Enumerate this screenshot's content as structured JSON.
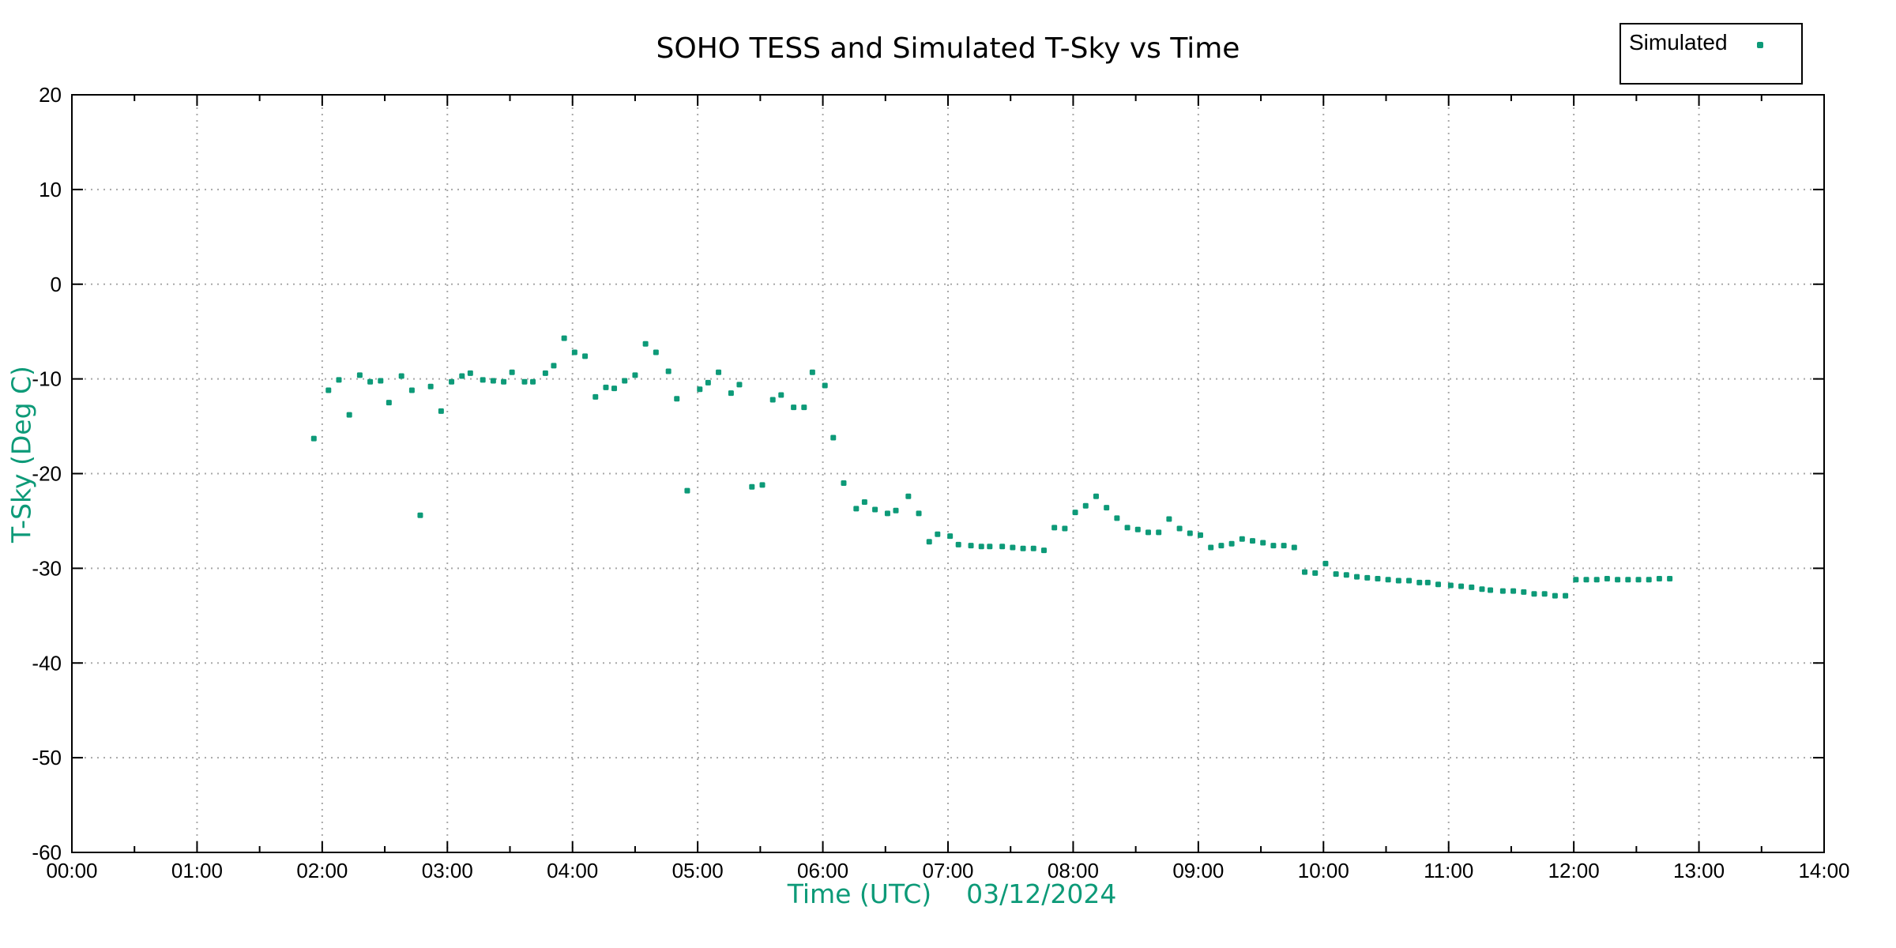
{
  "colors": {
    "accent_green": "#0d9a78",
    "grid": "#a8a8a8",
    "axis": "#000000",
    "background": "#ffffff"
  },
  "title": "SOHO TESS and Simulated T-Sky vs Time",
  "legend": {
    "label": "Simulated",
    "position": "top-right",
    "marker": "dot"
  },
  "axes": {
    "x": {
      "label": "Time (UTC)",
      "date": "03/12/2024",
      "tick_labels": [
        "00:00",
        "01:00",
        "02:00",
        "03:00",
        "04:00",
        "05:00",
        "06:00",
        "07:00",
        "08:00",
        "09:00",
        "10:00",
        "11:00",
        "12:00",
        "13:00",
        "14:00"
      ],
      "range_hours": [
        0,
        14
      ],
      "minor_tick_interval_minutes": 30
    },
    "y": {
      "label": "T-Sky (Deg C)",
      "tick_labels": [
        20,
        10,
        0,
        -10,
        -20,
        -30,
        -40,
        -50,
        -60
      ],
      "range": [
        -60,
        20
      ]
    }
  },
  "chart_data": {
    "type": "scatter",
    "title": "SOHO TESS and Simulated T-Sky vs Time",
    "xlabel": "Time (UTC) 03/12/2024",
    "ylabel": "T-Sky (Deg C)",
    "xlim_hours": [
      0,
      14
    ],
    "ylim": [
      -60,
      20
    ],
    "grid": "dotted",
    "legend_position": "top-right",
    "series": [
      {
        "name": "Simulated",
        "color": "#0d9a78",
        "marker": "square-dot",
        "points": [
          [
            "01:56",
            -16.3
          ],
          [
            "02:03",
            -11.2
          ],
          [
            "02:08",
            -10.1
          ],
          [
            "02:13",
            -13.8
          ],
          [
            "02:18",
            -9.6
          ],
          [
            "02:23",
            -10.3
          ],
          [
            "02:28",
            -10.2
          ],
          [
            "02:32",
            -12.5
          ],
          [
            "02:38",
            -9.7
          ],
          [
            "02:43",
            -11.2
          ],
          [
            "02:47",
            -24.4
          ],
          [
            "02:52",
            -10.8
          ],
          [
            "02:57",
            -13.4
          ],
          [
            "03:02",
            -10.3
          ],
          [
            "03:07",
            -9.7
          ],
          [
            "03:11",
            -9.4
          ],
          [
            "03:17",
            -10.1
          ],
          [
            "03:22",
            -10.2
          ],
          [
            "03:27",
            -10.3
          ],
          [
            "03:31",
            -9.3
          ],
          [
            "03:37",
            -10.3
          ],
          [
            "03:41",
            -10.3
          ],
          [
            "03:47",
            -9.4
          ],
          [
            "03:51",
            -8.6
          ],
          [
            "03:56",
            -5.7
          ],
          [
            "04:01",
            -7.2
          ],
          [
            "04:06",
            -7.6
          ],
          [
            "04:11",
            -11.9
          ],
          [
            "04:16",
            -10.9
          ],
          [
            "04:20",
            -11.0
          ],
          [
            "04:25",
            -10.2
          ],
          [
            "04:30",
            -9.6
          ],
          [
            "04:35",
            -6.3
          ],
          [
            "04:40",
            -7.2
          ],
          [
            "04:46",
            -9.2
          ],
          [
            "04:50",
            -12.1
          ],
          [
            "04:55",
            -21.8
          ],
          [
            "05:01",
            -11.1
          ],
          [
            "05:05",
            -10.4
          ],
          [
            "05:10",
            -9.3
          ],
          [
            "05:16",
            -11.5
          ],
          [
            "05:20",
            -10.6
          ],
          [
            "05:26",
            -21.4
          ],
          [
            "05:31",
            -21.2
          ],
          [
            "05:36",
            -12.2
          ],
          [
            "05:40",
            -11.7
          ],
          [
            "05:46",
            -13.0
          ],
          [
            "05:51",
            -13.0
          ],
          [
            "05:55",
            -9.3
          ],
          [
            "06:01",
            -10.7
          ],
          [
            "06:05",
            -16.2
          ],
          [
            "06:10",
            -21.0
          ],
          [
            "06:16",
            -23.7
          ],
          [
            "06:20",
            -23.0
          ],
          [
            "06:25",
            -23.8
          ],
          [
            "06:31",
            -24.2
          ],
          [
            "06:35",
            -23.9
          ],
          [
            "06:41",
            -22.4
          ],
          [
            "06:46",
            -24.2
          ],
          [
            "06:51",
            -27.2
          ],
          [
            "06:55",
            -26.4
          ],
          [
            "07:01",
            -26.6
          ],
          [
            "07:05",
            -27.5
          ],
          [
            "07:11",
            -27.6
          ],
          [
            "07:16",
            -27.7
          ],
          [
            "07:20",
            -27.7
          ],
          [
            "07:26",
            -27.7
          ],
          [
            "07:31",
            -27.8
          ],
          [
            "07:36",
            -27.9
          ],
          [
            "07:41",
            -27.9
          ],
          [
            "07:46",
            -28.1
          ],
          [
            "07:51",
            -25.7
          ],
          [
            "07:56",
            -25.8
          ],
          [
            "08:01",
            -24.1
          ],
          [
            "08:06",
            -23.4
          ],
          [
            "08:11",
            -22.4
          ],
          [
            "08:16",
            -23.6
          ],
          [
            "08:21",
            -24.7
          ],
          [
            "08:26",
            -25.7
          ],
          [
            "08:31",
            -25.9
          ],
          [
            "08:36",
            -26.2
          ],
          [
            "08:41",
            -26.2
          ],
          [
            "08:46",
            -24.8
          ],
          [
            "08:51",
            -25.8
          ],
          [
            "08:56",
            -26.3
          ],
          [
            "09:01",
            -26.5
          ],
          [
            "09:06",
            -27.8
          ],
          [
            "09:11",
            -27.6
          ],
          [
            "09:16",
            -27.4
          ],
          [
            "09:21",
            -26.9
          ],
          [
            "09:26",
            -27.1
          ],
          [
            "09:31",
            -27.3
          ],
          [
            "09:36",
            -27.6
          ],
          [
            "09:41",
            -27.6
          ],
          [
            "09:46",
            -27.8
          ],
          [
            "09:51",
            -30.4
          ],
          [
            "09:56",
            -30.5
          ],
          [
            "10:01",
            -29.5
          ],
          [
            "10:06",
            -30.6
          ],
          [
            "10:11",
            -30.7
          ],
          [
            "10:16",
            -30.9
          ],
          [
            "10:21",
            -31.0
          ],
          [
            "10:26",
            -31.1
          ],
          [
            "10:31",
            -31.2
          ],
          [
            "10:36",
            -31.3
          ],
          [
            "10:41",
            -31.3
          ],
          [
            "10:46",
            -31.5
          ],
          [
            "10:50",
            -31.5
          ],
          [
            "10:55",
            -31.7
          ],
          [
            "11:01",
            -31.8
          ],
          [
            "11:06",
            -31.9
          ],
          [
            "11:11",
            -32.0
          ],
          [
            "11:16",
            -32.2
          ],
          [
            "11:20",
            -32.3
          ],
          [
            "11:26",
            -32.4
          ],
          [
            "11:31",
            -32.4
          ],
          [
            "11:36",
            -32.5
          ],
          [
            "11:41",
            -32.7
          ],
          [
            "11:46",
            -32.7
          ],
          [
            "11:51",
            -32.9
          ],
          [
            "11:56",
            -32.9
          ],
          [
            "12:01",
            -31.2
          ],
          [
            "12:06",
            -31.2
          ],
          [
            "12:11",
            -31.2
          ],
          [
            "12:16",
            -31.1
          ],
          [
            "12:21",
            -31.2
          ],
          [
            "12:26",
            -31.2
          ],
          [
            "12:31",
            -31.2
          ],
          [
            "12:36",
            -31.2
          ],
          [
            "12:41",
            -31.1
          ],
          [
            "12:46",
            -31.1
          ]
        ]
      }
    ]
  }
}
